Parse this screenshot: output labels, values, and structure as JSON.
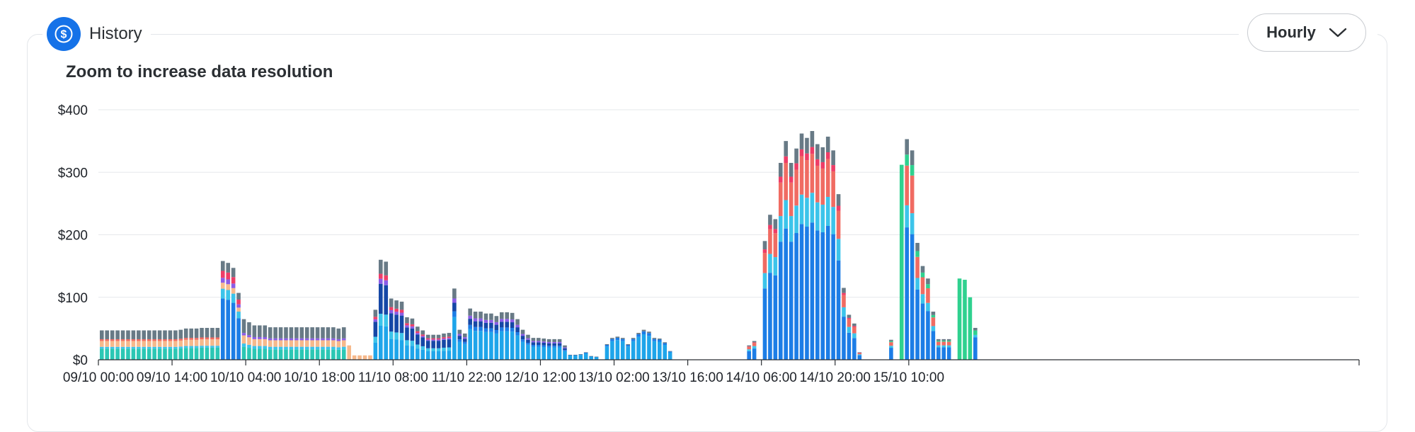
{
  "header": {
    "title": "History",
    "badge_icon": "dollar-coin-icon",
    "interval_select": {
      "label": "Hourly",
      "icon": "chevron-down-icon"
    }
  },
  "colors": {
    "accent": "#1572e8",
    "series": {
      "gray": "#687a86",
      "red_top": "#ee3d67",
      "purple": "#8b5ce6",
      "salmon": "#f06b62",
      "peach": "#f6b98c",
      "green": "#2fd18f",
      "light_blue": "#3cc4ea",
      "teal": "#2bc7b4",
      "dark_blue": "#1547a6",
      "medium_blue": "#1c7de6",
      "sky_blue": "#1ea5ea"
    }
  },
  "chart_data": {
    "type": "bar",
    "stacked": true,
    "subtitle": "Zoom to increase data resolution",
    "xlabel": "",
    "ylabel": "",
    "ylim": [
      0,
      400
    ],
    "y_ticks": [
      "$400",
      "$300",
      "$200",
      "$100",
      "$0"
    ],
    "x_ticks": [
      "09/10 00:00",
      "09/10 14:00",
      "10/10 04:00",
      "10/10 18:00",
      "11/10 08:00",
      "11/10 22:00",
      "12/10 12:00",
      "13/10 02:00",
      "13/10 16:00",
      "14/10 06:00",
      "14/10 20:00",
      "15/10 10:00"
    ],
    "grid": true,
    "legend": "none",
    "x_start": "09/10 00:00",
    "interval": "hourly",
    "bar_totals": [
      47,
      47,
      47,
      47,
      47,
      47,
      47,
      47,
      47,
      47,
      47,
      47,
      47,
      47,
      47,
      48,
      50,
      50,
      50,
      51,
      51,
      51,
      51,
      158,
      155,
      147,
      107,
      65,
      60,
      55,
      55,
      55,
      52,
      52,
      52,
      52,
      52,
      52,
      52,
      52,
      52,
      52,
      52,
      52,
      52,
      50,
      52,
      23,
      7,
      7,
      7,
      7,
      80,
      160,
      157,
      98,
      95,
      93,
      68,
      66,
      53,
      47,
      40,
      40,
      40,
      42,
      43,
      114,
      48,
      42,
      82,
      77,
      77,
      74,
      74,
      70,
      76,
      76,
      75,
      65,
      48,
      40,
      35,
      35,
      34,
      33,
      33,
      33,
      23,
      8,
      8,
      9,
      12,
      6,
      5,
      0,
      25,
      35,
      37,
      35,
      25,
      35,
      43,
      48,
      45,
      35,
      34,
      28,
      14,
      0,
      0,
      0,
      0,
      0,
      0,
      0,
      0,
      0,
      0,
      0,
      0,
      0,
      0,
      23,
      30,
      0,
      190,
      232,
      225,
      315,
      350,
      315,
      338,
      362,
      355,
      366,
      345,
      340,
      357,
      335,
      265,
      115,
      72,
      58,
      12,
      0,
      0,
      0,
      0,
      0,
      32,
      0,
      312,
      353,
      335,
      187,
      150,
      130,
      77,
      33,
      33,
      33,
      0,
      130,
      128,
      100,
      51
    ]
  }
}
